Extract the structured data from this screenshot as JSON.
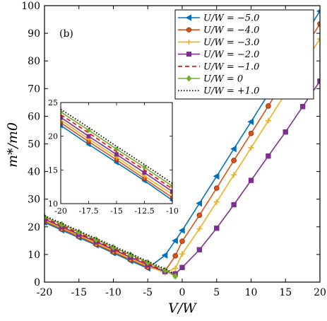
{
  "chart_data": {
    "type": "line",
    "panel_label": "(b)",
    "xlabel": "V/W",
    "ylabel": "m*/m0",
    "xlim": [
      -20,
      20
    ],
    "ylim": [
      0,
      100
    ],
    "xticks": [
      -20,
      -15,
      -10,
      -5,
      0,
      5,
      10,
      15,
      20
    ],
    "yticks": [
      0,
      10,
      20,
      30,
      40,
      50,
      60,
      70,
      80,
      90,
      100
    ],
    "xtick_labels": [
      "-20",
      "-15",
      "-10",
      "-5",
      "0",
      "5",
      "10",
      "15",
      "20"
    ],
    "ytick_labels": [
      "0",
      "10",
      "20",
      "30",
      "40",
      "50",
      "60",
      "70",
      "80",
      "90",
      "100"
    ],
    "legend_position": "top-right",
    "series": [
      {
        "name": "U/W = −5.0",
        "color": "#0072BD",
        "marker": "triangle-left",
        "style": "solid",
        "x": [
          -20,
          -17.5,
          -15,
          -12.5,
          -10,
          -7.5,
          -5,
          -2.5,
          -1,
          0,
          2.5,
          5,
          7.5,
          10,
          12.5,
          15,
          17.5,
          20
        ],
        "y": [
          21.6,
          18.8,
          16.1,
          13.4,
          10.5,
          7.7,
          5.0,
          9.7,
          15.0,
          18.7,
          28.5,
          38.3,
          48.2,
          58.0,
          68.0,
          78.2,
          88.2,
          98.0
        ]
      },
      {
        "name": "U/W = −4.0",
        "color": "#D95319",
        "marker": "circle",
        "style": "solid",
        "x": [
          -20,
          -17.5,
          -15,
          -12.5,
          -10,
          -7.5,
          -5,
          -2.5,
          -1,
          0,
          2.5,
          5,
          7.5,
          10,
          12.5,
          15,
          17.5,
          20
        ],
        "y": [
          22.0,
          19.2,
          16.5,
          13.7,
          10.9,
          8.1,
          5.4,
          4.0,
          9.5,
          14.8,
          24.2,
          34.0,
          44.0,
          53.8,
          63.7,
          73.6,
          83.6,
          93.4
        ]
      },
      {
        "name": "U/W = −3.0",
        "color": "#EDB120",
        "marker": "plus",
        "style": "solid",
        "x": [
          -20,
          -17.5,
          -15,
          -12.5,
          -10,
          -7.5,
          -5,
          -2.5,
          -1,
          0,
          2.5,
          5,
          7.5,
          10,
          12.5,
          15,
          17.5,
          20
        ],
        "y": [
          22.4,
          19.6,
          16.9,
          14.1,
          11.4,
          8.6,
          5.8,
          3.4,
          5.0,
          10.2,
          19.3,
          29.0,
          38.8,
          48.6,
          58.4,
          68.3,
          78.2,
          88.0
        ]
      },
      {
        "name": "U/W = −2.0",
        "color": "#7E2F8E",
        "marker": "square",
        "style": "solid",
        "x": [
          -20,
          -17.5,
          -15,
          -12.5,
          -10,
          -7.5,
          -5,
          -2.5,
          -1,
          0,
          2.5,
          5,
          7.5,
          10,
          12.5,
          15,
          17.5,
          20
        ],
        "y": [
          22.8,
          20.0,
          17.3,
          14.6,
          11.8,
          9.0,
          6.2,
          3.8,
          3.0,
          5.3,
          11.7,
          19.5,
          28.0,
          36.8,
          45.6,
          54.3,
          63.5,
          72.7
        ]
      },
      {
        "name": "U/W = −1.0",
        "color": "#FF0000",
        "marker": "none",
        "style": "dashed",
        "x": [
          -20,
          -17.5,
          -15,
          -12.5,
          -10,
          -7.5,
          -5,
          -2.5,
          -1.5
        ],
        "y": [
          23.2,
          20.5,
          17.7,
          15.0,
          12.2,
          9.5,
          6.7,
          4.0,
          3.0
        ]
      },
      {
        "name": "U/W = 0",
        "color": "#77AC30",
        "marker": "diamond",
        "style": "solid",
        "x": [
          -20,
          -17.5,
          -15,
          -12.5,
          -10,
          -7.5,
          -5,
          -2.5,
          -1
        ],
        "y": [
          23.6,
          20.9,
          18.1,
          15.4,
          12.6,
          9.9,
          7.1,
          4.3,
          2.1
        ]
      },
      {
        "name": "U/W = +1.0",
        "color": "#000000",
        "marker": "none",
        "style": "dotted",
        "x": [
          -20,
          -17.5,
          -15,
          -12.5,
          -10,
          -7.5,
          -5,
          -2.5,
          -1.5
        ],
        "y": [
          24.0,
          21.3,
          18.5,
          15.8,
          13.0,
          10.3,
          7.5,
          4.8,
          3.5
        ]
      }
    ],
    "inset": {
      "xlim": [
        -20,
        -10
      ],
      "ylim": [
        10,
        25
      ],
      "xticks": [
        -20,
        -17.5,
        -15,
        -12.5,
        -10
      ],
      "yticks": [
        10,
        15,
        20,
        25
      ],
      "xtick_labels": [
        "-20",
        "-17.5",
        "-15",
        "-12.5",
        "-10"
      ],
      "ytick_labels": [
        "10",
        "15",
        "20",
        "25"
      ]
    }
  }
}
